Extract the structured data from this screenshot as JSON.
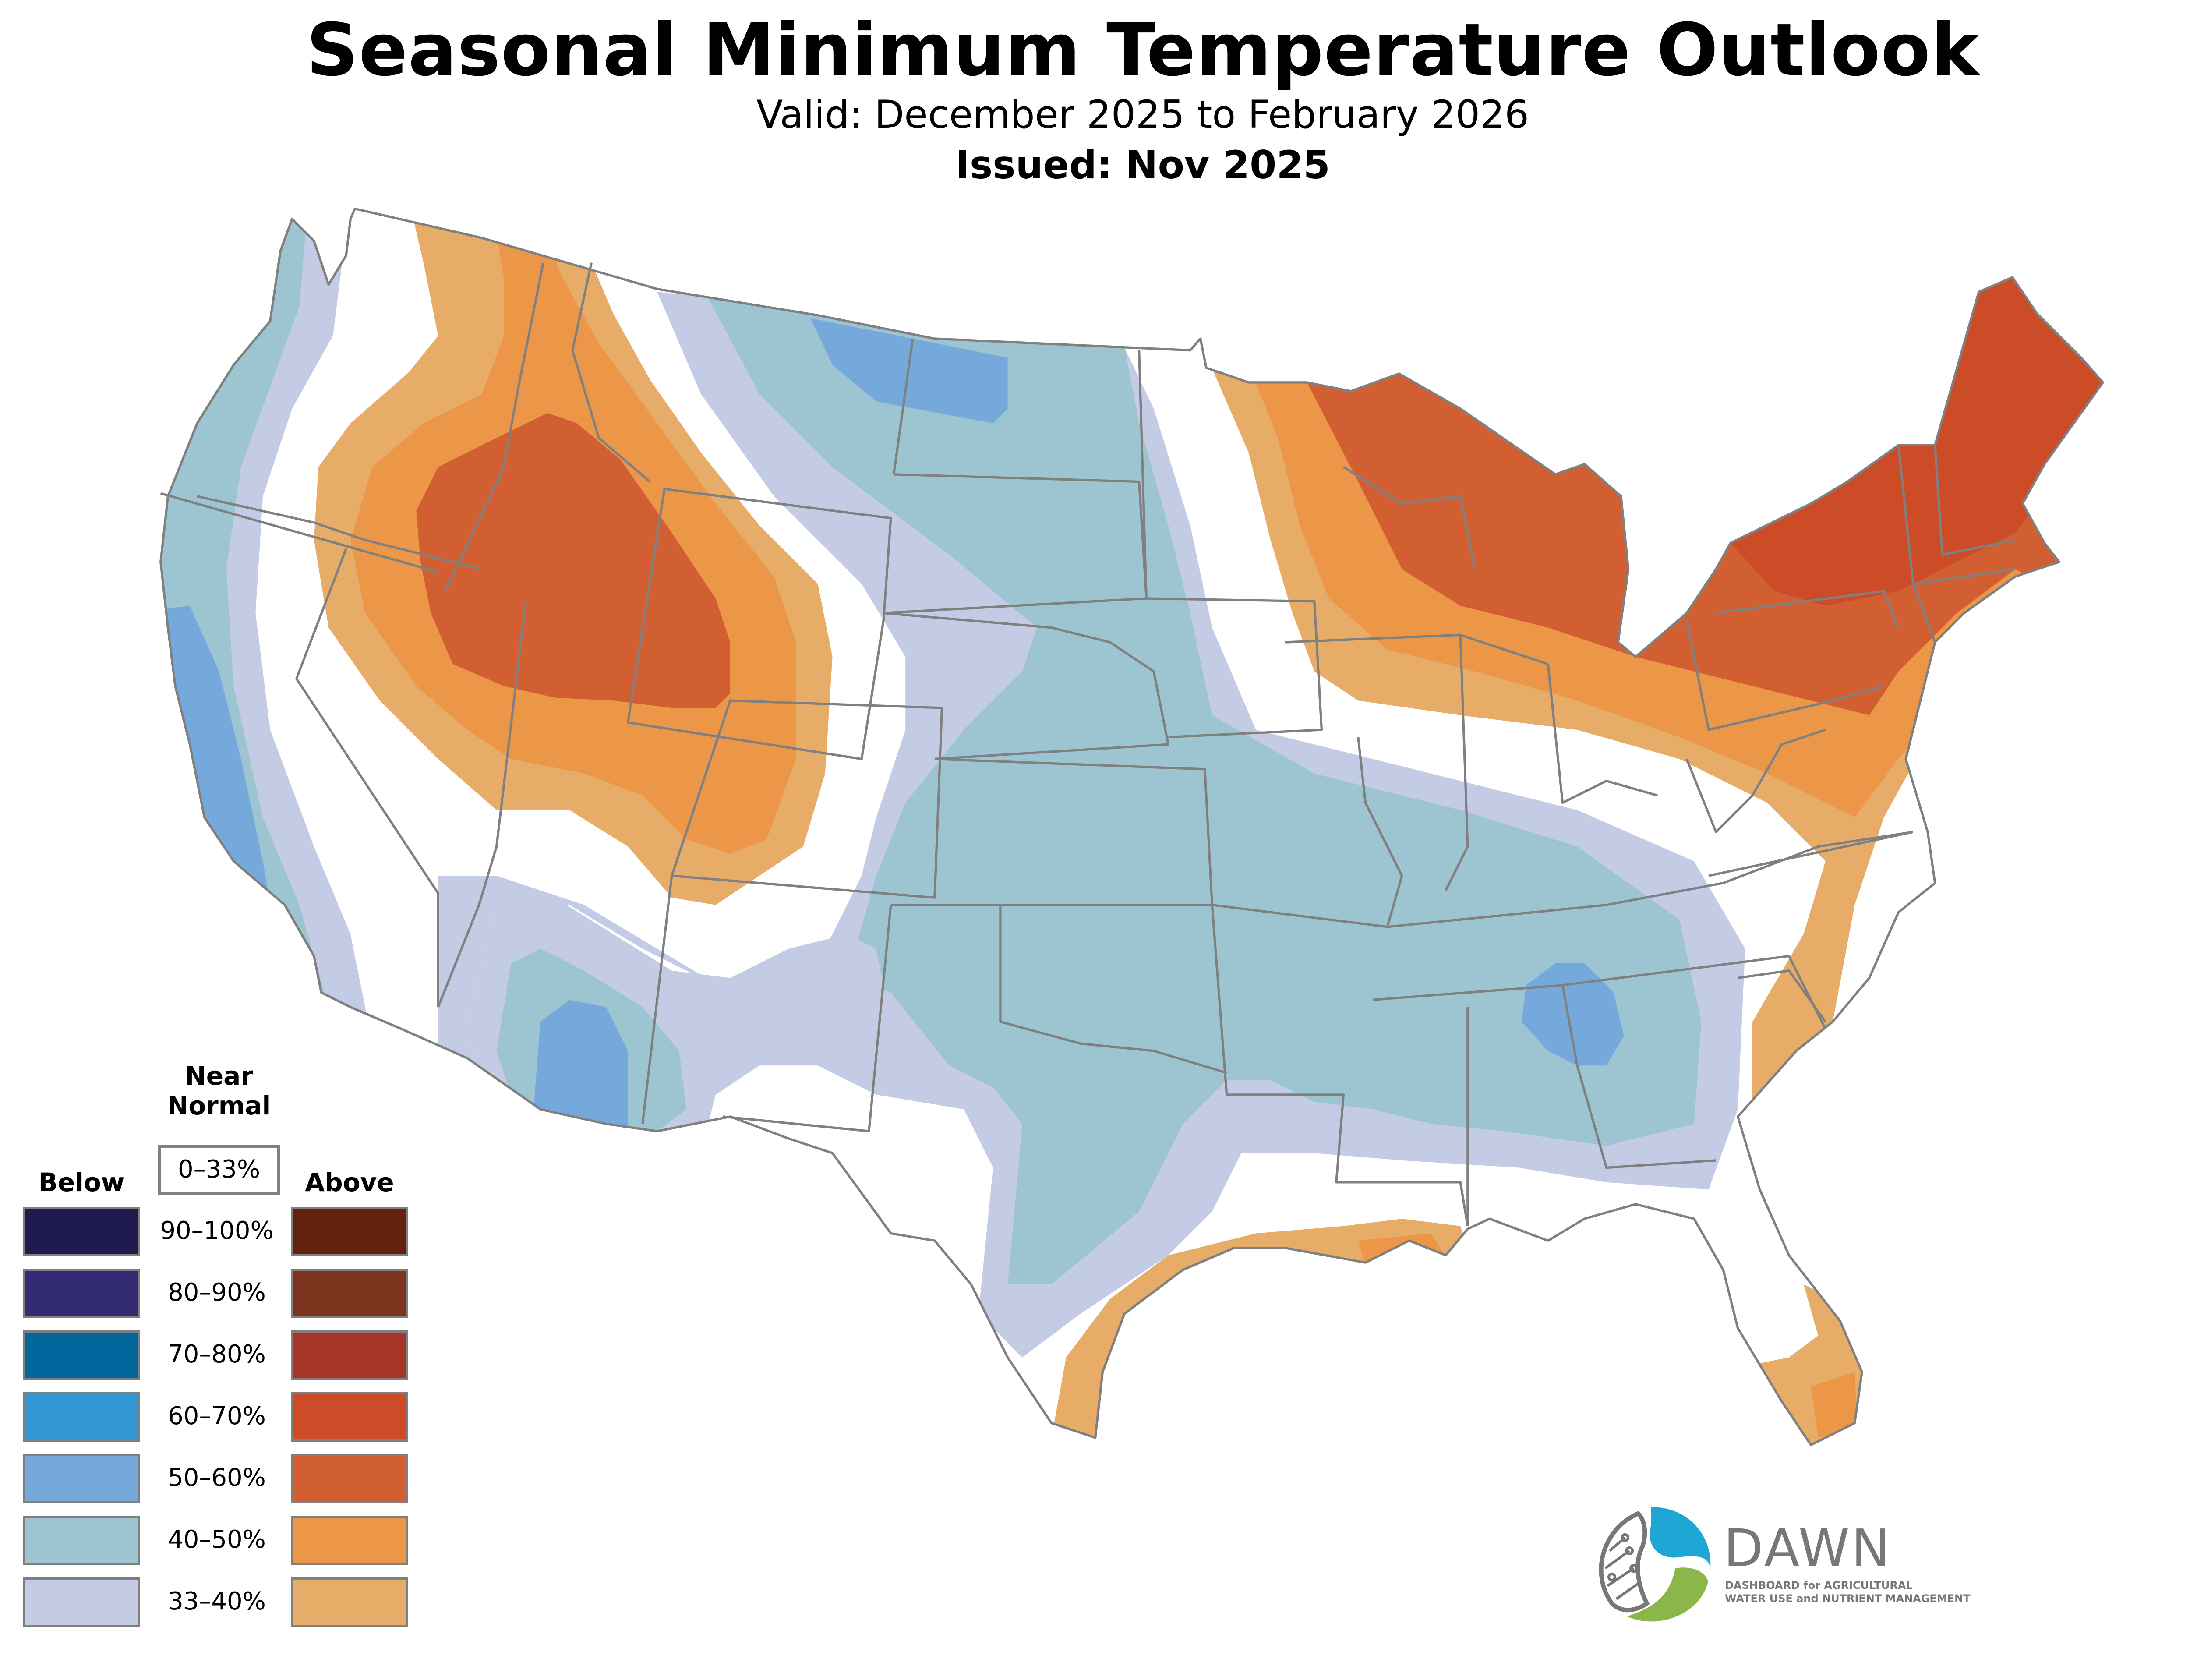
{
  "header": {
    "title": "Seasonal Minimum Temperature Outlook",
    "valid": "Valid: December 2025 to February 2026",
    "issued": "Issued: Nov 2025"
  },
  "legend": {
    "near_normal_line1": "Near",
    "near_normal_line2": "Normal",
    "near_normal_range": "0–33%",
    "below_label": "Below",
    "above_label": "Above",
    "rows": [
      {
        "range": "90–100%",
        "below_color": "#1f1a4f",
        "above_color": "#612210"
      },
      {
        "range": "80–90%",
        "below_color": "#332c74",
        "above_color": "#7c341e"
      },
      {
        "range": "70–80%",
        "below_color": "#02679d",
        "above_color": "#a73526"
      },
      {
        "range": "60–70%",
        "below_color": "#3399d5",
        "above_color": "#cc4c28"
      },
      {
        "range": "50–60%",
        "below_color": "#76a9db",
        "above_color": "#d25f31"
      },
      {
        "range": "40–50%",
        "below_color": "#9cc5d1",
        "above_color": "#ec9647"
      },
      {
        "range": "33–40%",
        "below_color": "#c4cbe4",
        "above_color": "#e8ac69"
      }
    ]
  },
  "map": {
    "boundary_color": "#808080",
    "regions": [
      {
        "name": "west-coast-below-33-40",
        "category": "below",
        "probability": "33–40%"
      },
      {
        "name": "west-coast-below-40-50",
        "category": "below",
        "probability": "40–50%"
      },
      {
        "name": "california-below-50-60",
        "category": "below",
        "probability": "50–60%"
      },
      {
        "name": "great-basin-above-33-40",
        "category": "above",
        "probability": "33–40%"
      },
      {
        "name": "great-basin-above-40-50",
        "category": "above",
        "probability": "40–50%"
      },
      {
        "name": "idaho-wyoming-above-50-60",
        "category": "above",
        "probability": "50–60%"
      },
      {
        "name": "plains-below-33-40",
        "category": "below",
        "probability": "33–40%"
      },
      {
        "name": "plains-below-40-50",
        "category": "below",
        "probability": "40–50%"
      },
      {
        "name": "montana-dakota-below-50-60",
        "category": "below",
        "probability": "50–60%"
      },
      {
        "name": "southwest-below-33-40",
        "category": "below",
        "probability": "33–40%"
      },
      {
        "name": "southwest-below-40-50",
        "category": "below",
        "probability": "40–50%"
      },
      {
        "name": "arizona-below-50-60",
        "category": "below",
        "probability": "50–60%"
      },
      {
        "name": "georgia-alabama-below-50-60",
        "category": "below",
        "probability": "50–60%"
      },
      {
        "name": "great-lakes-east-above-33-40",
        "category": "above",
        "probability": "33–40%"
      },
      {
        "name": "great-lakes-east-above-40-50",
        "category": "above",
        "probability": "40–50%"
      },
      {
        "name": "great-lakes-northeast-above-50-60",
        "category": "above",
        "probability": "50–60%"
      },
      {
        "name": "new-england-above-60-70",
        "category": "above",
        "probability": "60–70%"
      },
      {
        "name": "gulf-coast-above-33-40",
        "category": "above",
        "probability": "33–40%"
      },
      {
        "name": "florida-above-33-40",
        "category": "above",
        "probability": "33–40%"
      }
    ]
  },
  "logo": {
    "wordmark": "DAWN",
    "tagline_1": "DASHBOARD for AGRICULTURAL",
    "tagline_2": "WATER USE and NUTRIENT MANAGEMENT",
    "blue": "#1ea7d4",
    "green": "#8bb74a",
    "gray": "#777777"
  }
}
